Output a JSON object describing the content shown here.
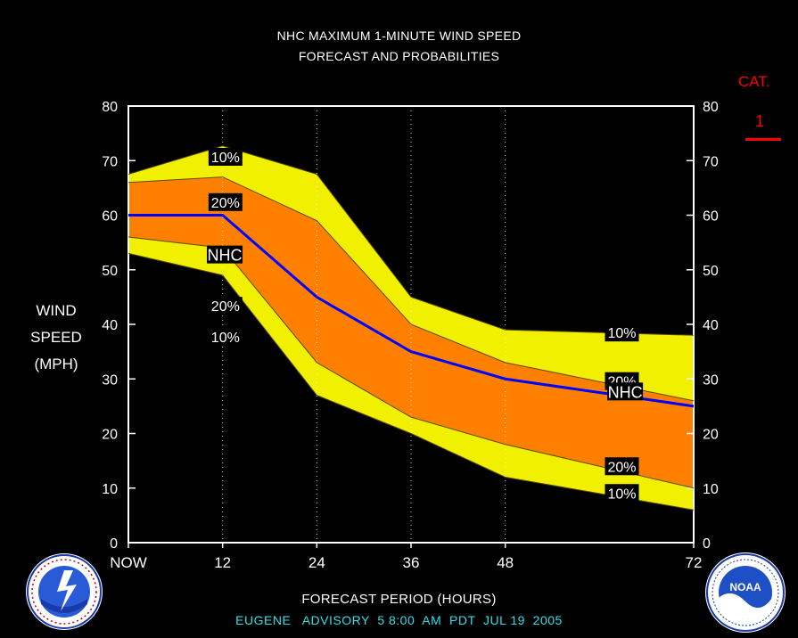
{
  "header": {
    "title_line1": "NHC MAXIMUM 1-MINUTE WIND SPEED",
    "title_line2": "FORECAST AND PROBABILITIES"
  },
  "y_label": {
    "line1": "WIND",
    "line2": "SPEED",
    "line3": "(MPH)"
  },
  "category": {
    "label": "CAT.",
    "value": "1"
  },
  "x_title": "FORECAST PERIOD (HOURS)",
  "advisory": "EUGENE   ADVISORY  5 8:00  AM  PDT  JUL 19  2005",
  "logos": {
    "left": "noaa-nws-logo",
    "right": "noaa-logo"
  },
  "colors": {
    "band_outer": "#f0f000",
    "band_inner": "#ff8000",
    "nhc_line": "#0000ff",
    "category_accent": "#ff0000",
    "advisory_text": "#2ee0e8"
  },
  "chart_data": {
    "type": "area",
    "x": [
      0,
      12,
      24,
      36,
      48,
      72
    ],
    "x_tick_labels": [
      "NOW",
      "12",
      "24",
      "36",
      "48",
      "72"
    ],
    "xlim": [
      0,
      72
    ],
    "ylim": [
      0,
      80
    ],
    "y_ticks": [
      0,
      10,
      20,
      30,
      40,
      50,
      60,
      70,
      80
    ],
    "y_tick_labels": [
      "0",
      "10",
      "20",
      "30",
      "40",
      "50",
      "60",
      "70",
      "80"
    ],
    "series": [
      {
        "name": "NHC",
        "values": [
          60,
          60,
          45,
          35,
          30,
          25
        ]
      },
      {
        "name": "10%",
        "values": [
          67.5,
          72.7,
          67.5,
          45,
          39,
          38
        ]
      },
      {
        "name": "20%",
        "values": [
          66,
          67,
          59,
          40,
          33,
          26
        ]
      },
      {
        "name": "20%",
        "values": [
          56,
          54,
          33,
          23,
          18,
          10
        ]
      },
      {
        "name": "10%",
        "values": [
          53,
          49,
          27,
          20,
          12,
          6
        ]
      }
    ],
    "labels": [
      {
        "text": "10%",
        "x": 10.2,
        "y": 70.7
      },
      {
        "text": "20%",
        "x": 10.2,
        "y": 62.4
      },
      {
        "text": "NHC",
        "x": 10.0,
        "y": 52.8
      },
      {
        "text": "20%",
        "x": 10.2,
        "y": 43.4
      },
      {
        "text": "10%",
        "x": 10.2,
        "y": 37.7
      },
      {
        "text": "10%",
        "x": 60.7,
        "y": 38.5
      },
      {
        "text": "20%",
        "x": 60.7,
        "y": 29.6
      },
      {
        "text": "NHC",
        "x": 61.0,
        "y": 27.7
      },
      {
        "text": "20%",
        "x": 60.7,
        "y": 14.0
      },
      {
        "text": "10%",
        "x": 60.7,
        "y": 9.1
      }
    ],
    "grid": "dotted vertical lines"
  }
}
